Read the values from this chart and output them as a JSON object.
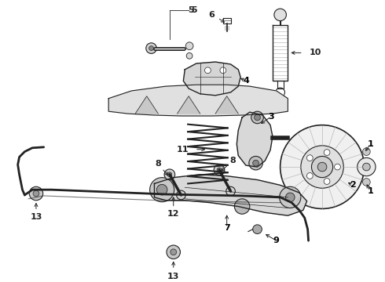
{
  "background_color": "#ffffff",
  "line_color": "#222222",
  "label_color": "#000000",
  "figsize": [
    4.9,
    3.6
  ],
  "dpi": 100
}
